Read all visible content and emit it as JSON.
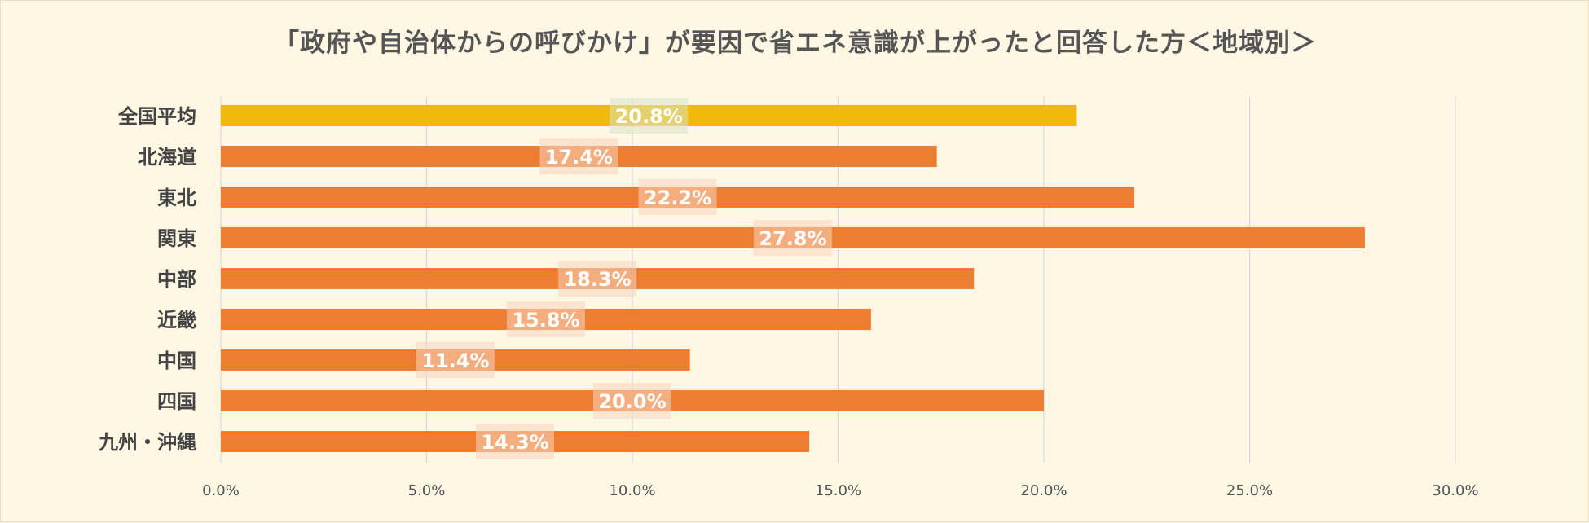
{
  "chart_data": {
    "type": "bar",
    "orientation": "horizontal",
    "title": "「政府や自治体からの呼びかけ」が要因で省エネ意識が上がったと回答した方＜地域別＞",
    "categories": [
      "全国平均",
      "北海道",
      "東北",
      "関東",
      "中部",
      "近畿",
      "中国",
      "四国",
      "九州・沖縄"
    ],
    "values": [
      20.8,
      17.4,
      22.2,
      27.8,
      18.3,
      15.8,
      11.4,
      20.0,
      14.3
    ],
    "data_labels": [
      "20.8%",
      "17.4%",
      "22.2%",
      "27.8%",
      "18.3%",
      "15.8%",
      "11.4%",
      "20.0%",
      "14.3%"
    ],
    "x_ticks": [
      0,
      5,
      10,
      15,
      20,
      25,
      30
    ],
    "x_tick_labels": [
      "0.0%",
      "5.0%",
      "10.0%",
      "15.0%",
      "20.0%",
      "25.0%",
      "30.0%"
    ],
    "xlim": [
      0,
      30
    ],
    "xlabel": "",
    "ylabel": "",
    "grid": true,
    "legend": "none",
    "colors": {
      "highlight": "#f0b90b",
      "bar": "#ed7d31",
      "highlight_label_bg": "#d9e6c4",
      "bar_label_bg": "#f8d6c0",
      "grid": "#d9d9d9",
      "background": "#fdf7e4"
    }
  }
}
